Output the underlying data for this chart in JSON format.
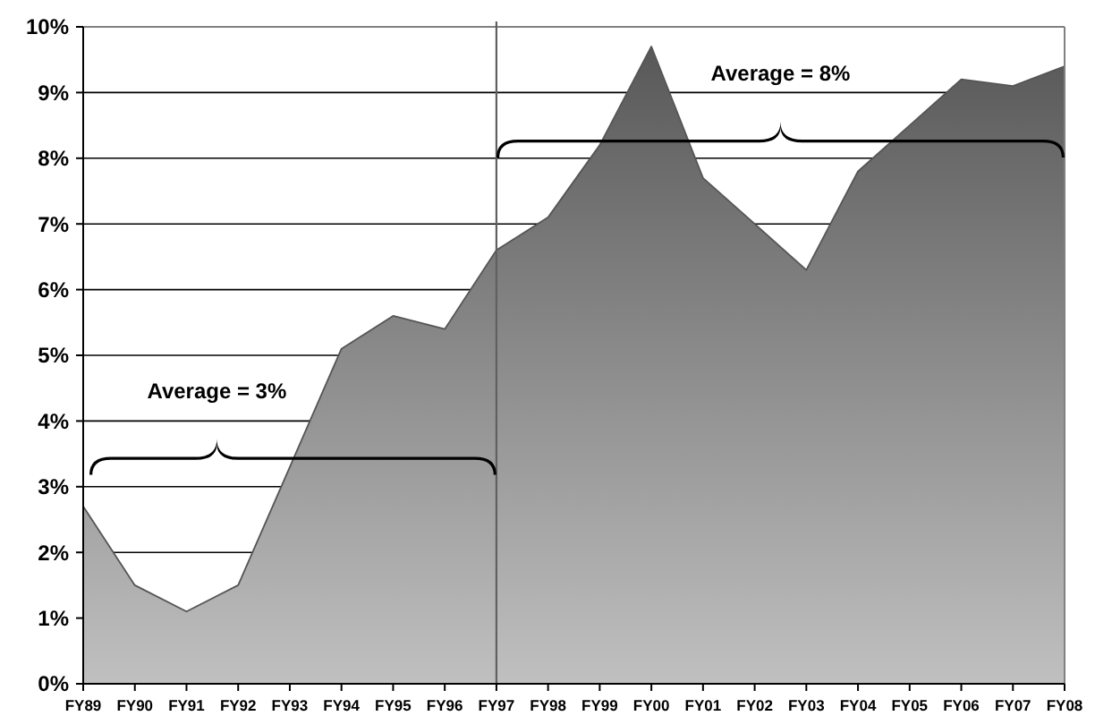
{
  "chart_data": {
    "type": "area",
    "categories": [
      "FY89",
      "FY90",
      "FY91",
      "FY92",
      "FY93",
      "FY94",
      "FY95",
      "FY96",
      "FY97",
      "FY98",
      "FY99",
      "FY00",
      "FY01",
      "FY02",
      "FY03",
      "FY04",
      "FY05",
      "FY06",
      "FY07",
      "FY08"
    ],
    "values": [
      2.7,
      1.5,
      1.1,
      1.5,
      3.3,
      5.1,
      5.6,
      5.4,
      6.6,
      7.1,
      8.2,
      9.7,
      7.7,
      7.0,
      6.3,
      7.8,
      8.5,
      9.2,
      9.1,
      9.4
    ],
    "color": "#555555",
    "ylim": [
      0,
      10
    ],
    "yticks": [
      {
        "value": 0,
        "label": "0%"
      },
      {
        "value": 1,
        "label": "1%"
      },
      {
        "value": 2,
        "label": "2%"
      },
      {
        "value": 3,
        "label": "3%"
      },
      {
        "value": 4,
        "label": "4%"
      },
      {
        "value": 5,
        "label": "5%"
      },
      {
        "value": 6,
        "label": "6%"
      },
      {
        "value": 7,
        "label": "7%"
      },
      {
        "value": 8,
        "label": "8%"
      },
      {
        "value": 9,
        "label": "9%"
      },
      {
        "value": 10,
        "label": "10%"
      }
    ],
    "grid": "y",
    "ref_lines": [
      {
        "axis": "x",
        "value": "FY97",
        "color": "#606060"
      }
    ],
    "annotations": [
      "Average = 3%",
      "Average = 8%"
    ]
  }
}
